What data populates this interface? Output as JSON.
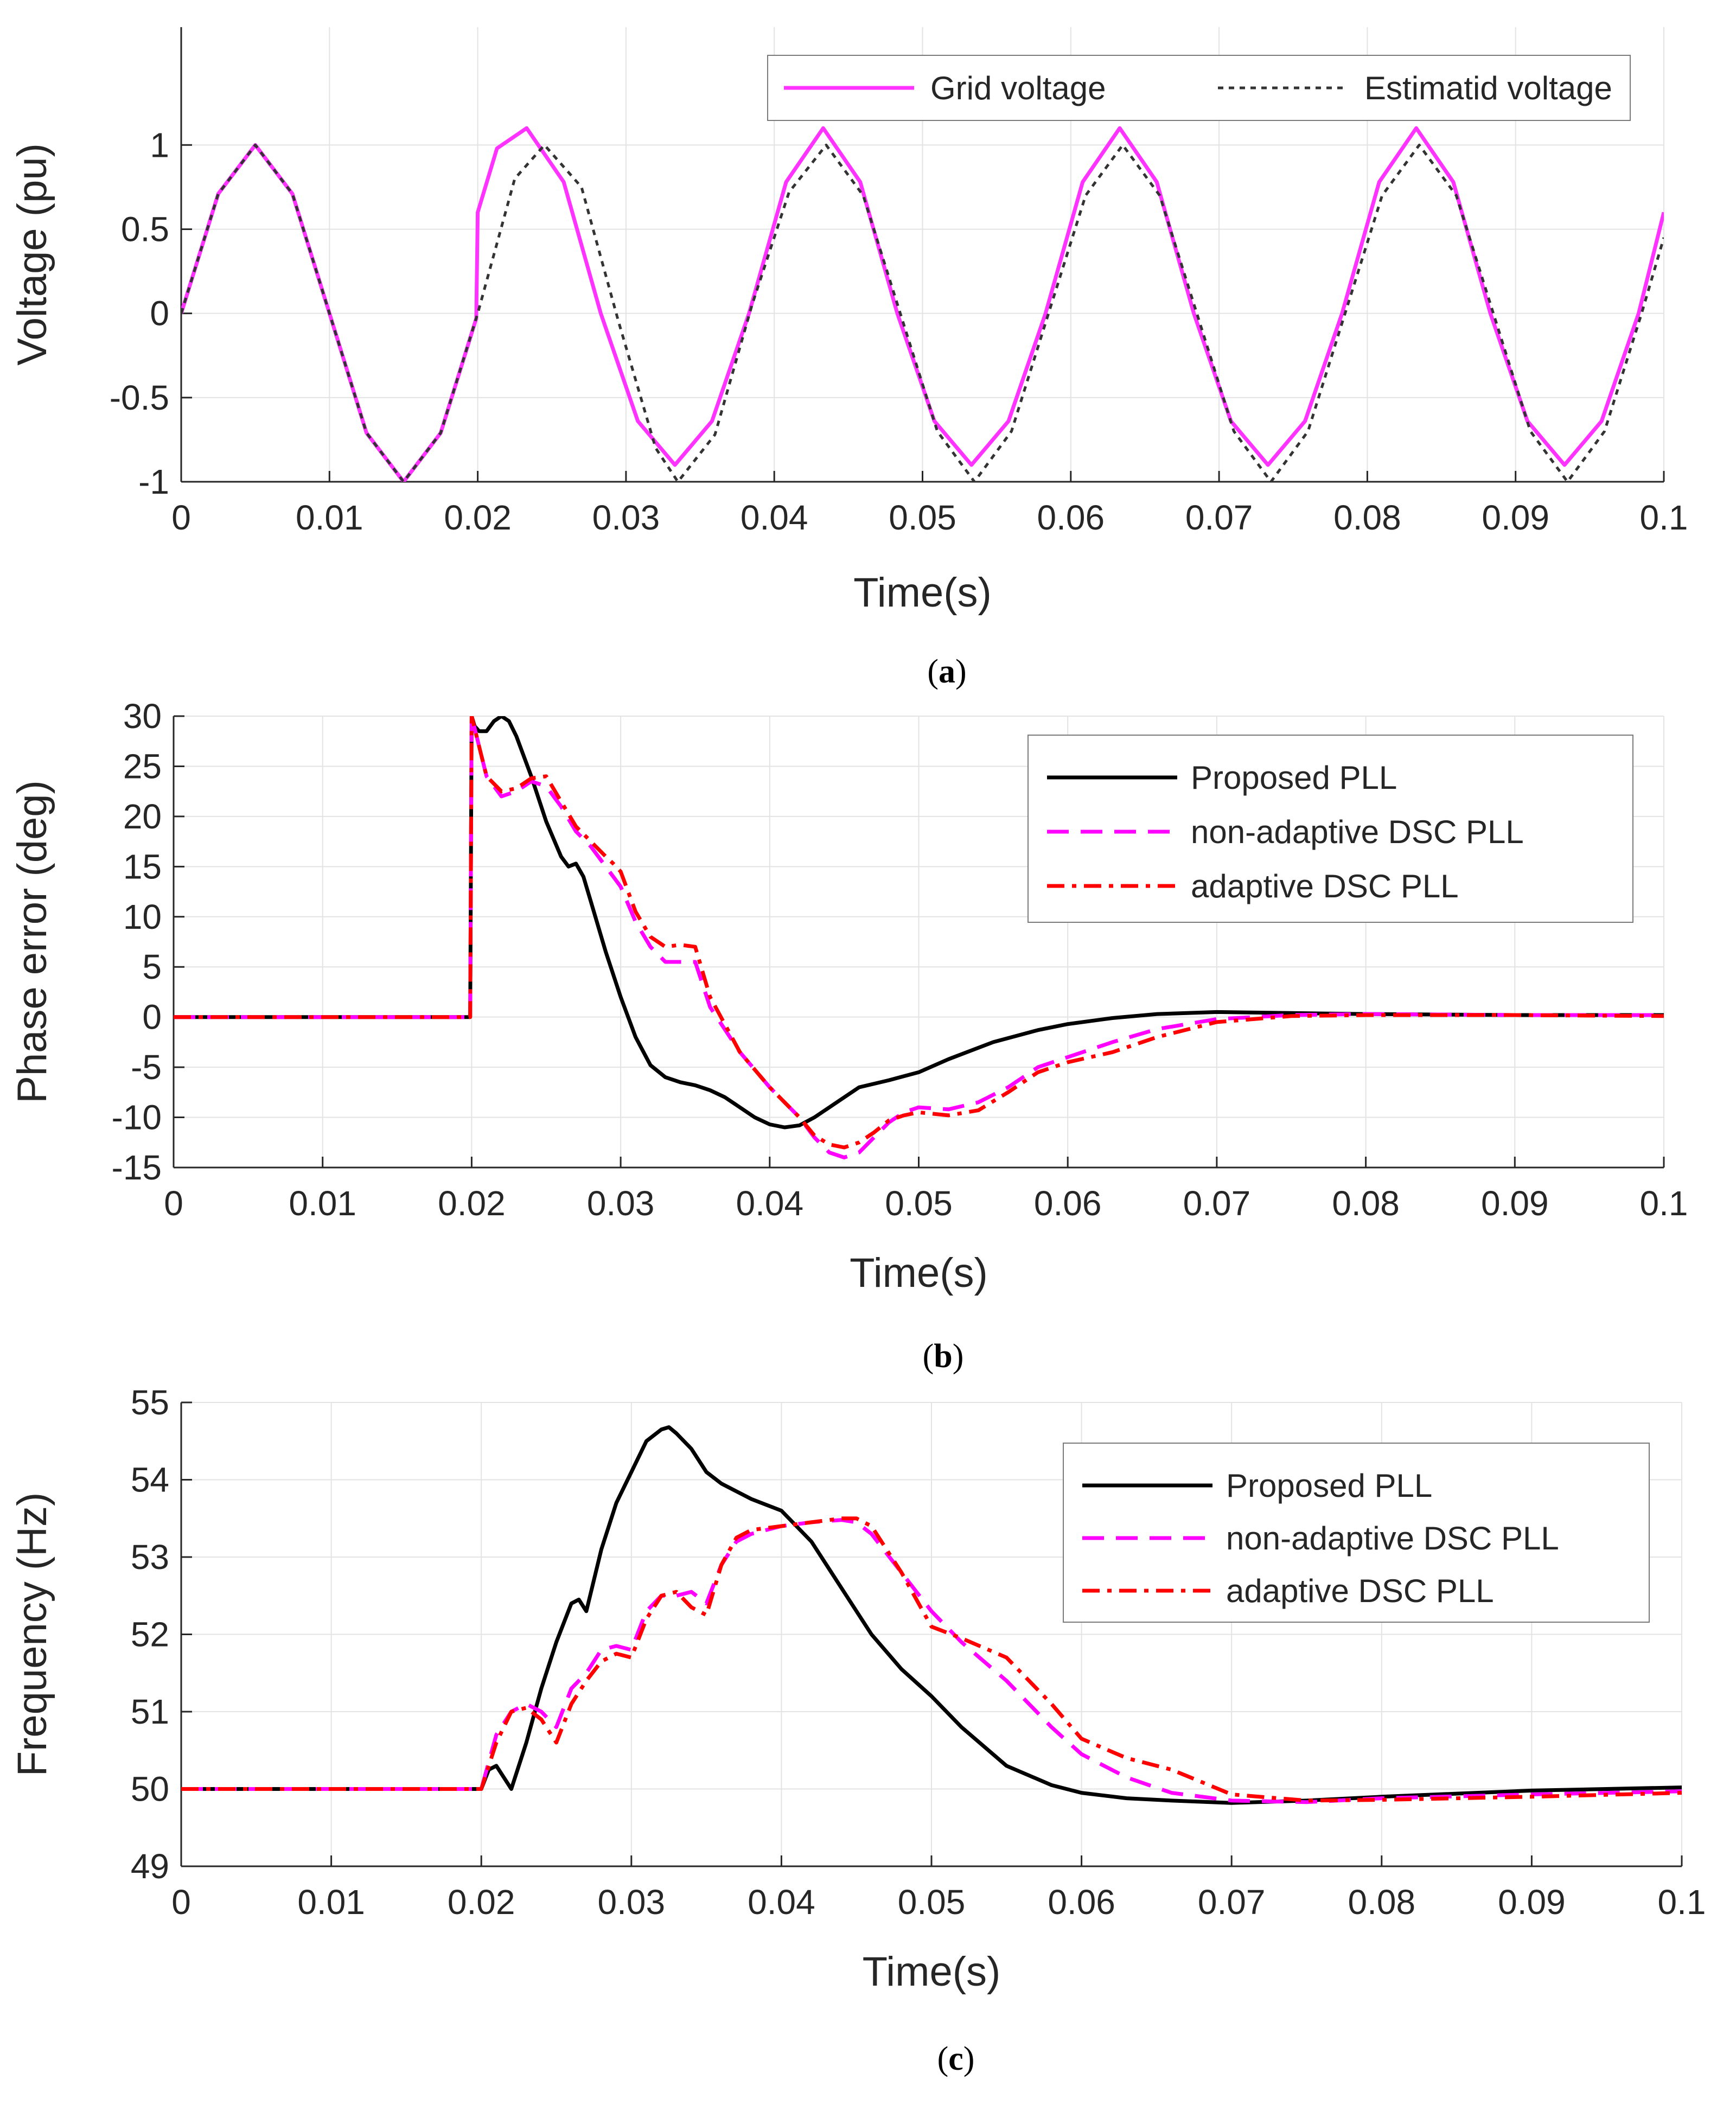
{
  "colors": {
    "grid_voltage": "#ff33ff",
    "estimated_voltage": "#333333",
    "proposed": "#000000",
    "nonadaptive": "#ff00ff",
    "adaptive": "#ff0000"
  },
  "chart_data": [
    {
      "id": "a",
      "type": "line",
      "caption_letter": "a",
      "xlabel": "Time(s)",
      "ylabel": "Voltage (pu)",
      "xlim": [
        0,
        0.1
      ],
      "ylim": [
        -1,
        1.7
      ],
      "xticks": [
        0,
        0.01,
        0.02,
        0.03,
        0.04,
        0.05,
        0.06,
        0.07,
        0.08,
        0.09,
        0.1
      ],
      "xticklabels": [
        "0",
        "0.01",
        "0.02",
        "0.03",
        "0.04",
        "0.05",
        "0.06",
        "0.07",
        "0.08",
        "0.09",
        "0.1"
      ],
      "yticks": [
        -1,
        -0.5,
        0,
        0.5,
        1
      ],
      "yticklabels": [
        "-1",
        "-0.5",
        "0",
        "0.5",
        "1"
      ],
      "grid": true,
      "legend_position": "top-right",
      "series": [
        {
          "name": "Grid voltage",
          "color": "#ff33ff",
          "dash": "solid",
          "x": [
            0,
            0.0025,
            0.005,
            0.0075,
            0.01,
            0.0125,
            0.015,
            0.0175,
            0.0199,
            0.02,
            0.0213,
            0.0233,
            0.0258,
            0.0283,
            0.0308,
            0.0333,
            0.0358,
            0.0383,
            0.0408,
            0.0433,
            0.0458,
            0.0483,
            0.0508,
            0.0533,
            0.0558,
            0.0583,
            0.0608,
            0.0633,
            0.0658,
            0.0683,
            0.0708,
            0.0733,
            0.0758,
            0.0783,
            0.0808,
            0.0833,
            0.0858,
            0.0883,
            0.0908,
            0.0933,
            0.0958,
            0.0983,
            0.1
          ],
          "y": [
            0,
            0.71,
            1,
            0.71,
            0,
            -0.71,
            -1,
            -0.71,
            -0.03,
            0.6,
            0.98,
            1.1,
            0.78,
            0,
            -0.64,
            -0.9,
            -0.64,
            0,
            0.78,
            1.1,
            0.78,
            0,
            -0.64,
            -0.9,
            -0.64,
            0,
            0.78,
            1.1,
            0.78,
            0,
            -0.64,
            -0.9,
            -0.64,
            0,
            0.78,
            1.1,
            0.78,
            0,
            -0.64,
            -0.9,
            -0.64,
            0,
            0.6
          ]
        },
        {
          "name": "Estimatid voltage",
          "color": "#333333",
          "dash": "dotted",
          "x": [
            0,
            0.0025,
            0.005,
            0.0075,
            0.01,
            0.0125,
            0.015,
            0.0175,
            0.02,
            0.0225,
            0.0245,
            0.027,
            0.0295,
            0.032,
            0.0335,
            0.036,
            0.0385,
            0.041,
            0.0435,
            0.046,
            0.0485,
            0.051,
            0.0535,
            0.056,
            0.0585,
            0.061,
            0.0635,
            0.066,
            0.0685,
            0.071,
            0.0735,
            0.076,
            0.0785,
            0.081,
            0.0835,
            0.086,
            0.0885,
            0.091,
            0.0935,
            0.096,
            0.0985,
            0.1
          ],
          "y": [
            0,
            0.71,
            1,
            0.71,
            0,
            -0.71,
            -1,
            -0.71,
            0,
            0.8,
            1,
            0.75,
            -0.05,
            -0.8,
            -1,
            -0.72,
            0.05,
            0.72,
            1,
            0.7,
            0,
            -0.7,
            -1,
            -0.7,
            0,
            0.7,
            1,
            0.7,
            0,
            -0.7,
            -1,
            -0.7,
            0,
            0.7,
            1,
            0.7,
            0,
            -0.7,
            -1,
            -0.7,
            0,
            0.45
          ]
        }
      ]
    },
    {
      "id": "b",
      "type": "line",
      "caption_letter": "b",
      "xlabel": "Time(s)",
      "ylabel": "Phase error (deg)",
      "xlim": [
        0,
        0.1
      ],
      "ylim": [
        -15,
        30
      ],
      "xticks": [
        0,
        0.01,
        0.02,
        0.03,
        0.04,
        0.05,
        0.06,
        0.07,
        0.08,
        0.09,
        0.1
      ],
      "xticklabels": [
        "0",
        "0.01",
        "0.02",
        "0.03",
        "0.04",
        "0.05",
        "0.06",
        "0.07",
        "0.08",
        "0.09",
        "0.1"
      ],
      "yticks": [
        -15,
        -10,
        -5,
        0,
        5,
        10,
        15,
        20,
        25,
        30
      ],
      "yticklabels": [
        "-15",
        "-10",
        "-5",
        "0",
        "5",
        "10",
        "15",
        "20",
        "25",
        "30"
      ],
      "grid": true,
      "legend_position": "top-right",
      "series": [
        {
          "name": "Proposed PLL",
          "color": "#000000",
          "dash": "solid",
          "x": [
            0,
            0.0199,
            0.02,
            0.0202,
            0.0205,
            0.021,
            0.0215,
            0.022,
            0.0225,
            0.023,
            0.024,
            0.025,
            0.026,
            0.0265,
            0.027,
            0.0275,
            0.028,
            0.029,
            0.03,
            0.031,
            0.032,
            0.033,
            0.034,
            0.035,
            0.036,
            0.037,
            0.038,
            0.039,
            0.04,
            0.041,
            0.042,
            0.043,
            0.044,
            0.045,
            0.046,
            0.048,
            0.05,
            0.052,
            0.055,
            0.058,
            0.06,
            0.063,
            0.066,
            0.07,
            0.075,
            0.08,
            0.09,
            0.1
          ],
          "y": [
            0,
            0,
            30,
            29,
            28.5,
            28.5,
            29.5,
            30,
            29.5,
            28,
            24,
            19.5,
            16,
            15,
            15.3,
            14,
            11.5,
            6.5,
            2,
            -2,
            -4.8,
            -6,
            -6.5,
            -6.8,
            -7.3,
            -8,
            -9,
            -10,
            -10.7,
            -11,
            -10.8,
            -10,
            -9,
            -8,
            -7,
            -6.3,
            -5.5,
            -4.2,
            -2.5,
            -1.3,
            -0.7,
            -0.1,
            0.3,
            0.5,
            0.4,
            0.3,
            0.2,
            0.2
          ]
        },
        {
          "name": "non-adaptive DSC PLL",
          "color": "#ff00ff",
          "dash": "dashed",
          "x": [
            0,
            0.0199,
            0.02,
            0.0205,
            0.021,
            0.022,
            0.023,
            0.024,
            0.025,
            0.026,
            0.027,
            0.028,
            0.029,
            0.0295,
            0.03,
            0.031,
            0.032,
            0.033,
            0.034,
            0.035,
            0.036,
            0.038,
            0.04,
            0.042,
            0.043,
            0.044,
            0.045,
            0.046,
            0.047,
            0.048,
            0.049,
            0.05,
            0.052,
            0.054,
            0.056,
            0.058,
            0.06,
            0.063,
            0.066,
            0.07,
            0.075,
            0.08,
            0.09,
            0.1
          ],
          "y": [
            0,
            0,
            30,
            27,
            24,
            22,
            22.5,
            23.5,
            23,
            21,
            18.5,
            17,
            15,
            14,
            13,
            9.5,
            7,
            5.5,
            5.5,
            5.5,
            1,
            -3.5,
            -7,
            -10,
            -12,
            -13.5,
            -14,
            -13.5,
            -12,
            -10.5,
            -9.5,
            -9,
            -9.2,
            -8.5,
            -7,
            -5,
            -4,
            -2.5,
            -1.2,
            -0.2,
            0.2,
            0.3,
            0.2,
            0.2
          ]
        },
        {
          "name": "adaptive DSC PLL",
          "color": "#ff0000",
          "dash": "dashdot",
          "x": [
            0,
            0.0199,
            0.02,
            0.0205,
            0.021,
            0.022,
            0.023,
            0.024,
            0.025,
            0.026,
            0.027,
            0.028,
            0.029,
            0.0295,
            0.03,
            0.031,
            0.032,
            0.033,
            0.034,
            0.035,
            0.036,
            0.038,
            0.04,
            0.042,
            0.043,
            0.044,
            0.045,
            0.046,
            0.047,
            0.048,
            0.049,
            0.05,
            0.052,
            0.054,
            0.056,
            0.058,
            0.06,
            0.063,
            0.066,
            0.07,
            0.075,
            0.08,
            0.09,
            0.1
          ],
          "y": [
            0,
            0,
            30,
            27,
            24,
            22.5,
            22.8,
            23.8,
            24,
            21.5,
            19,
            17.5,
            16,
            15.3,
            14.5,
            10.5,
            8,
            7,
            7.2,
            7,
            2,
            -3.5,
            -7,
            -10,
            -11.8,
            -12.7,
            -13,
            -12.5,
            -11.5,
            -10.3,
            -9.8,
            -9.5,
            -9.8,
            -9.3,
            -7.5,
            -5.5,
            -4.5,
            -3.5,
            -2,
            -0.5,
            0.1,
            0.2,
            0.2,
            0.1
          ]
        }
      ]
    },
    {
      "id": "c",
      "type": "line",
      "caption_letter": "c",
      "xlabel": "Time(s)",
      "ylabel": "Frequency (Hz)",
      "xlim": [
        0,
        0.1
      ],
      "ylim": [
        49,
        55
      ],
      "xticks": [
        0,
        0.01,
        0.02,
        0.03,
        0.04,
        0.05,
        0.06,
        0.07,
        0.08,
        0.09,
        0.1
      ],
      "xticklabels": [
        "0",
        "0.01",
        "0.02",
        "0.03",
        "0.04",
        "0.05",
        "0.06",
        "0.07",
        "0.08",
        "0.09",
        "0.1"
      ],
      "yticks": [
        49,
        50,
        51,
        52,
        53,
        54,
        55
      ],
      "yticklabels": [
        "49",
        "50",
        "51",
        "52",
        "53",
        "54",
        "55"
      ],
      "grid": true,
      "legend_position": "top-right",
      "series": [
        {
          "name": "Proposed PLL",
          "color": "#000000",
          "dash": "solid",
          "x": [
            0,
            0.02,
            0.0205,
            0.021,
            0.0215,
            0.022,
            0.023,
            0.024,
            0.025,
            0.026,
            0.0265,
            0.027,
            0.028,
            0.029,
            0.03,
            0.031,
            0.032,
            0.0325,
            0.033,
            0.034,
            0.035,
            0.036,
            0.037,
            0.038,
            0.04,
            0.042,
            0.044,
            0.046,
            0.048,
            0.05,
            0.052,
            0.055,
            0.058,
            0.06,
            0.063,
            0.066,
            0.07,
            0.075,
            0.08,
            0.09,
            0.1
          ],
          "y": [
            50,
            50,
            50.25,
            50.3,
            50.15,
            50,
            50.6,
            51.3,
            51.9,
            52.4,
            52.45,
            52.3,
            53.1,
            53.7,
            54.1,
            54.5,
            54.65,
            54.68,
            54.6,
            54.4,
            54.1,
            53.95,
            53.85,
            53.75,
            53.6,
            53.2,
            52.6,
            52,
            51.55,
            51.2,
            50.8,
            50.3,
            50.05,
            49.95,
            49.88,
            49.85,
            49.82,
            49.85,
            49.9,
            49.98,
            50.02
          ]
        },
        {
          "name": "non-adaptive DSC PLL",
          "color": "#ff00ff",
          "dash": "dashed",
          "x": [
            0,
            0.02,
            0.021,
            0.022,
            0.023,
            0.024,
            0.025,
            0.026,
            0.027,
            0.028,
            0.029,
            0.03,
            0.031,
            0.032,
            0.033,
            0.034,
            0.035,
            0.036,
            0.037,
            0.038,
            0.04,
            0.042,
            0.044,
            0.045,
            0.046,
            0.048,
            0.05,
            0.052,
            0.055,
            0.058,
            0.06,
            0.063,
            0.066,
            0.07,
            0.075,
            0.08,
            0.09,
            0.1
          ],
          "y": [
            50,
            50,
            50.7,
            51,
            51.1,
            51,
            50.8,
            51.3,
            51.5,
            51.8,
            51.85,
            51.8,
            52.3,
            52.5,
            52.5,
            52.55,
            52.4,
            52.9,
            53.2,
            53.3,
            53.4,
            53.45,
            53.48,
            53.45,
            53.3,
            52.8,
            52.3,
            51.9,
            51.4,
            50.8,
            50.45,
            50.15,
            49.95,
            49.85,
            49.83,
            49.88,
            49.93,
            49.97
          ]
        },
        {
          "name": "adaptive DSC PLL",
          "color": "#ff0000",
          "dash": "dashdot",
          "x": [
            0,
            0.02,
            0.021,
            0.022,
            0.023,
            0.024,
            0.025,
            0.026,
            0.027,
            0.028,
            0.029,
            0.03,
            0.031,
            0.032,
            0.033,
            0.034,
            0.035,
            0.036,
            0.037,
            0.038,
            0.04,
            0.042,
            0.044,
            0.045,
            0.046,
            0.048,
            0.05,
            0.052,
            0.055,
            0.058,
            0.06,
            0.063,
            0.066,
            0.07,
            0.075,
            0.08,
            0.09,
            0.1
          ],
          "y": [
            50,
            50,
            50.6,
            51,
            51.05,
            50.9,
            50.6,
            51.1,
            51.4,
            51.65,
            51.75,
            51.7,
            52.2,
            52.5,
            52.55,
            52.35,
            52.25,
            52.9,
            53.25,
            53.35,
            53.4,
            53.45,
            53.5,
            53.5,
            53.4,
            52.8,
            52.1,
            51.95,
            51.7,
            51.1,
            50.65,
            50.4,
            50.25,
            49.93,
            49.85,
            49.86,
            49.9,
            49.95
          ]
        }
      ]
    }
  ]
}
